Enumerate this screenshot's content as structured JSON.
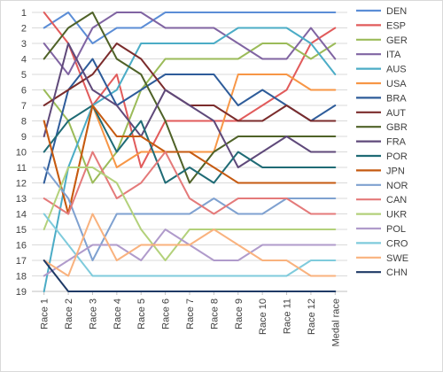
{
  "chart_data": {
    "type": "line",
    "categories": [
      "Race 1",
      "Race 2",
      "Race 3",
      "Race 4",
      "Race 5",
      "Race 6",
      "Race 7",
      "Race 8",
      "Race 9",
      "Race 10",
      "Race 11",
      "Race 12",
      "Medal race"
    ],
    "y_ticks": [
      "1",
      "2",
      "3",
      "4",
      "5",
      "6",
      "7",
      "8",
      "9",
      "10",
      "11",
      "12",
      "13",
      "14",
      "15",
      "16",
      "17",
      "18",
      "19"
    ],
    "ylim": [
      1,
      19
    ],
    "y_reversed": true,
    "grid": "horizontal",
    "legend_position": "right",
    "series": [
      {
        "name": "DEN",
        "color": "#5B8DD6",
        "values": [
          2,
          1,
          3,
          2,
          2,
          1,
          1,
          1,
          1,
          1,
          1,
          1,
          1
        ]
      },
      {
        "name": "ESP",
        "color": "#E15B5B",
        "values": [
          1,
          3,
          7,
          5,
          11,
          8,
          8,
          8,
          8,
          7,
          6,
          3,
          2
        ]
      },
      {
        "name": "GER",
        "color": "#9BBB59",
        "values": [
          6,
          8,
          12,
          10,
          6,
          4,
          4,
          4,
          4,
          3,
          3,
          4,
          3
        ]
      },
      {
        "name": "ITA",
        "color": "#8064A2",
        "values": [
          3,
          5,
          2,
          1,
          1,
          2,
          2,
          2,
          3,
          4,
          4,
          2,
          4
        ]
      },
      {
        "name": "AUS",
        "color": "#4BACC6",
        "values": [
          19,
          11,
          7,
          6,
          3,
          3,
          3,
          3,
          2,
          2,
          2,
          3,
          5
        ]
      },
      {
        "name": "USA",
        "color": "#F79646",
        "values": [
          8,
          14,
          7,
          11,
          10,
          10,
          10,
          10,
          5,
          5,
          5,
          6,
          6
        ]
      },
      {
        "name": "BRA",
        "color": "#2E5C9A",
        "values": [
          12,
          6,
          4,
          7,
          6,
          5,
          5,
          5,
          7,
          6,
          7,
          8,
          7
        ]
      },
      {
        "name": "AUT",
        "color": "#7B2C2C",
        "values": [
          7,
          6,
          5,
          3,
          4,
          6,
          7,
          7,
          8,
          8,
          7,
          8,
          8
        ]
      },
      {
        "name": "GBR",
        "color": "#4F6228",
        "values": [
          4,
          2,
          1,
          4,
          5,
          8,
          12,
          10,
          9,
          9,
          9,
          9,
          9
        ]
      },
      {
        "name": "FRA",
        "color": "#5F497A",
        "values": [
          9,
          3,
          6,
          7,
          9,
          6,
          7,
          8,
          11,
          10,
          9,
          10,
          10
        ]
      },
      {
        "name": "POR",
        "color": "#1F6B75",
        "values": [
          10,
          8,
          7,
          10,
          8,
          12,
          11,
          12,
          10,
          11,
          11,
          11,
          11
        ]
      },
      {
        "name": "JPN",
        "color": "#C55A11",
        "values": [
          8,
          14,
          7,
          9,
          9,
          10,
          10,
          11,
          12,
          12,
          12,
          12,
          12
        ]
      },
      {
        "name": "NOR",
        "color": "#7FA1D0",
        "values": [
          11,
          13,
          17,
          14,
          14,
          14,
          14,
          13,
          14,
          14,
          13,
          13,
          13
        ]
      },
      {
        "name": "CAN",
        "color": "#E47A7A",
        "values": [
          13,
          14,
          10,
          13,
          12,
          10,
          13,
          14,
          13,
          13,
          13,
          14,
          14
        ]
      },
      {
        "name": "UKR",
        "color": "#B3D17B",
        "values": [
          15,
          11,
          11,
          12,
          15,
          17,
          15,
          15,
          15,
          15,
          15,
          15,
          15
        ]
      },
      {
        "name": "POL",
        "color": "#B09BCB",
        "values": [
          18,
          17,
          16,
          16,
          17,
          15,
          16,
          17,
          17,
          16,
          16,
          16,
          16
        ]
      },
      {
        "name": "CRO",
        "color": "#7FCBDC",
        "values": [
          14,
          16,
          18,
          18,
          18,
          18,
          18,
          18,
          18,
          18,
          18,
          17,
          17
        ]
      },
      {
        "name": "SWE",
        "color": "#F9B27E",
        "values": [
          17,
          18,
          14,
          17,
          16,
          16,
          16,
          15,
          16,
          17,
          17,
          18,
          18
        ]
      },
      {
        "name": "CHN",
        "color": "#1F3A66",
        "values": [
          17,
          19,
          19,
          19,
          19,
          19,
          19,
          19,
          19,
          19,
          19,
          19,
          19
        ]
      }
    ]
  }
}
